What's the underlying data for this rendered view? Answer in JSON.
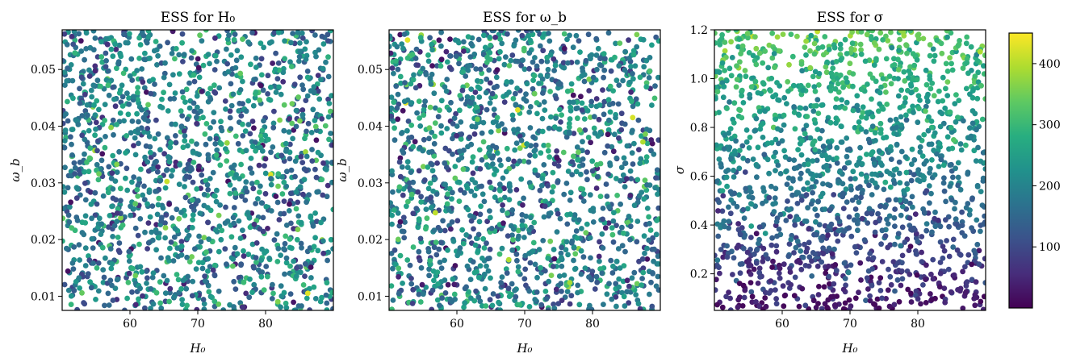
{
  "figure": {
    "colormap": "viridis",
    "marker_color_range": [
      "#440154",
      "#fde725"
    ]
  },
  "chart_data": [
    {
      "type": "scatter",
      "title": "ESS for H₀",
      "xlabel": "H₀",
      "ylabel": "ω_b",
      "xlim": [
        50,
        90
      ],
      "ylim": [
        0.0075,
        0.057
      ],
      "xticks": [
        60,
        70,
        80
      ],
      "xtick_labels": [
        "60",
        "70",
        "80"
      ],
      "yticks": [
        0.01,
        0.02,
        0.03,
        0.04,
        0.05
      ],
      "ytick_labels": [
        "0.01",
        "0.02",
        "0.03",
        "0.04",
        "0.05"
      ],
      "color_by": "ESS",
      "n_points": 1600,
      "ess_trend": "uniform, no dependence on position",
      "ess_range": [
        20,
        430
      ],
      "grid": false
    },
    {
      "type": "scatter",
      "title": "ESS for ω_b",
      "xlabel": "H₀",
      "ylabel": "ω_b",
      "xlim": [
        50,
        90
      ],
      "ylim": [
        0.0075,
        0.057
      ],
      "xticks": [
        60,
        70,
        80
      ],
      "xtick_labels": [
        "60",
        "70",
        "80"
      ],
      "yticks": [
        0.01,
        0.02,
        0.03,
        0.04,
        0.05
      ],
      "ytick_labels": [
        "0.01",
        "0.02",
        "0.03",
        "0.04",
        "0.05"
      ],
      "color_by": "ESS",
      "n_points": 1600,
      "ess_trend": "uniform, no dependence on position",
      "ess_range": [
        20,
        430
      ],
      "grid": false
    },
    {
      "type": "scatter",
      "title": "ESS for σ",
      "xlabel": "H₀",
      "ylabel": "σ",
      "xlim": [
        50,
        90
      ],
      "ylim": [
        0.05,
        1.2
      ],
      "xticks": [
        60,
        70,
        80
      ],
      "xtick_labels": [
        "60",
        "70",
        "80"
      ],
      "yticks": [
        0.2,
        0.4,
        0.6,
        0.8,
        1.0,
        1.2
      ],
      "ytick_labels": [
        "0.2",
        "0.4",
        "0.6",
        "0.8",
        "1.0",
        "1.2"
      ],
      "color_by": "ESS",
      "n_points": 1600,
      "ess_trend": "ESS increases with σ: about 20 at σ=0.05 to about 330 at σ=1.2",
      "ess_range": [
        10,
        440
      ],
      "grid": false
    }
  ],
  "colorbar": {
    "label": "",
    "vmin": 0,
    "vmax": 450,
    "ticks": [
      100,
      200,
      300,
      400
    ],
    "tick_labels": [
      "100",
      "200",
      "300",
      "400"
    ]
  }
}
